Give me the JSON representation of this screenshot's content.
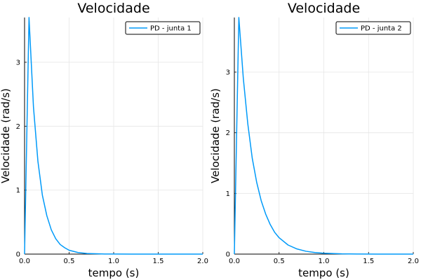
{
  "chart_data": [
    {
      "type": "line",
      "title": "Velocidade",
      "xlabel": "tempo (s)",
      "ylabel": "Velocidade (rad/s)",
      "xlim": [
        0,
        2.0
      ],
      "ylim": [
        0,
        3.7
      ],
      "xticks": [
        0,
        0.5,
        1.0,
        1.5,
        2.0
      ],
      "xtick_labels": [
        "0.0",
        "0.5",
        "1.0",
        "1.5",
        "2.0"
      ],
      "yticks": [
        0,
        1,
        2,
        3
      ],
      "ytick_labels": [
        "0",
        "1",
        "2",
        "3"
      ],
      "grid": true,
      "legend": "top-right",
      "series": [
        {
          "name": "PD - junta 1",
          "color": "#009af9",
          "x": [
            0,
            0.05,
            0.1,
            0.15,
            0.2,
            0.25,
            0.3,
            0.35,
            0.4,
            0.45,
            0.5,
            0.6,
            0.7,
            0.8,
            0.9,
            1.0,
            1.2,
            1.4,
            1.6,
            1.8,
            2.0
          ],
          "y": [
            0,
            3.7,
            2.3,
            1.45,
            0.92,
            0.6,
            0.38,
            0.24,
            0.15,
            0.1,
            0.06,
            0.025,
            0.01,
            0.005,
            0.002,
            0.001,
            0,
            0,
            0,
            0,
            0
          ]
        }
      ]
    },
    {
      "type": "line",
      "title": "Velocidade",
      "xlabel": "tempo (s)",
      "ylabel": "Velocidade (rad/s)",
      "xlim": [
        0,
        2.0
      ],
      "ylim": [
        0,
        3.9
      ],
      "xticks": [
        0,
        0.5,
        1.0,
        1.5,
        2.0
      ],
      "xtick_labels": [
        "0.0",
        "0.5",
        "1.0",
        "1.5",
        "2.0"
      ],
      "yticks": [
        0,
        1,
        2,
        3
      ],
      "ytick_labels": [
        "0",
        "1",
        "2",
        "3"
      ],
      "grid": true,
      "legend": "top-right",
      "series": [
        {
          "name": "PD - junta 2",
          "color": "#009af9",
          "x": [
            0,
            0.05,
            0.1,
            0.15,
            0.2,
            0.25,
            0.3,
            0.35,
            0.4,
            0.45,
            0.5,
            0.6,
            0.7,
            0.8,
            0.9,
            1.0,
            1.2,
            1.4,
            1.6,
            1.8,
            2.0
          ],
          "y": [
            0,
            3.9,
            2.9,
            2.15,
            1.58,
            1.18,
            0.88,
            0.66,
            0.49,
            0.36,
            0.27,
            0.15,
            0.085,
            0.047,
            0.026,
            0.015,
            0.005,
            0.0015,
            0,
            0,
            0
          ]
        }
      ]
    }
  ]
}
